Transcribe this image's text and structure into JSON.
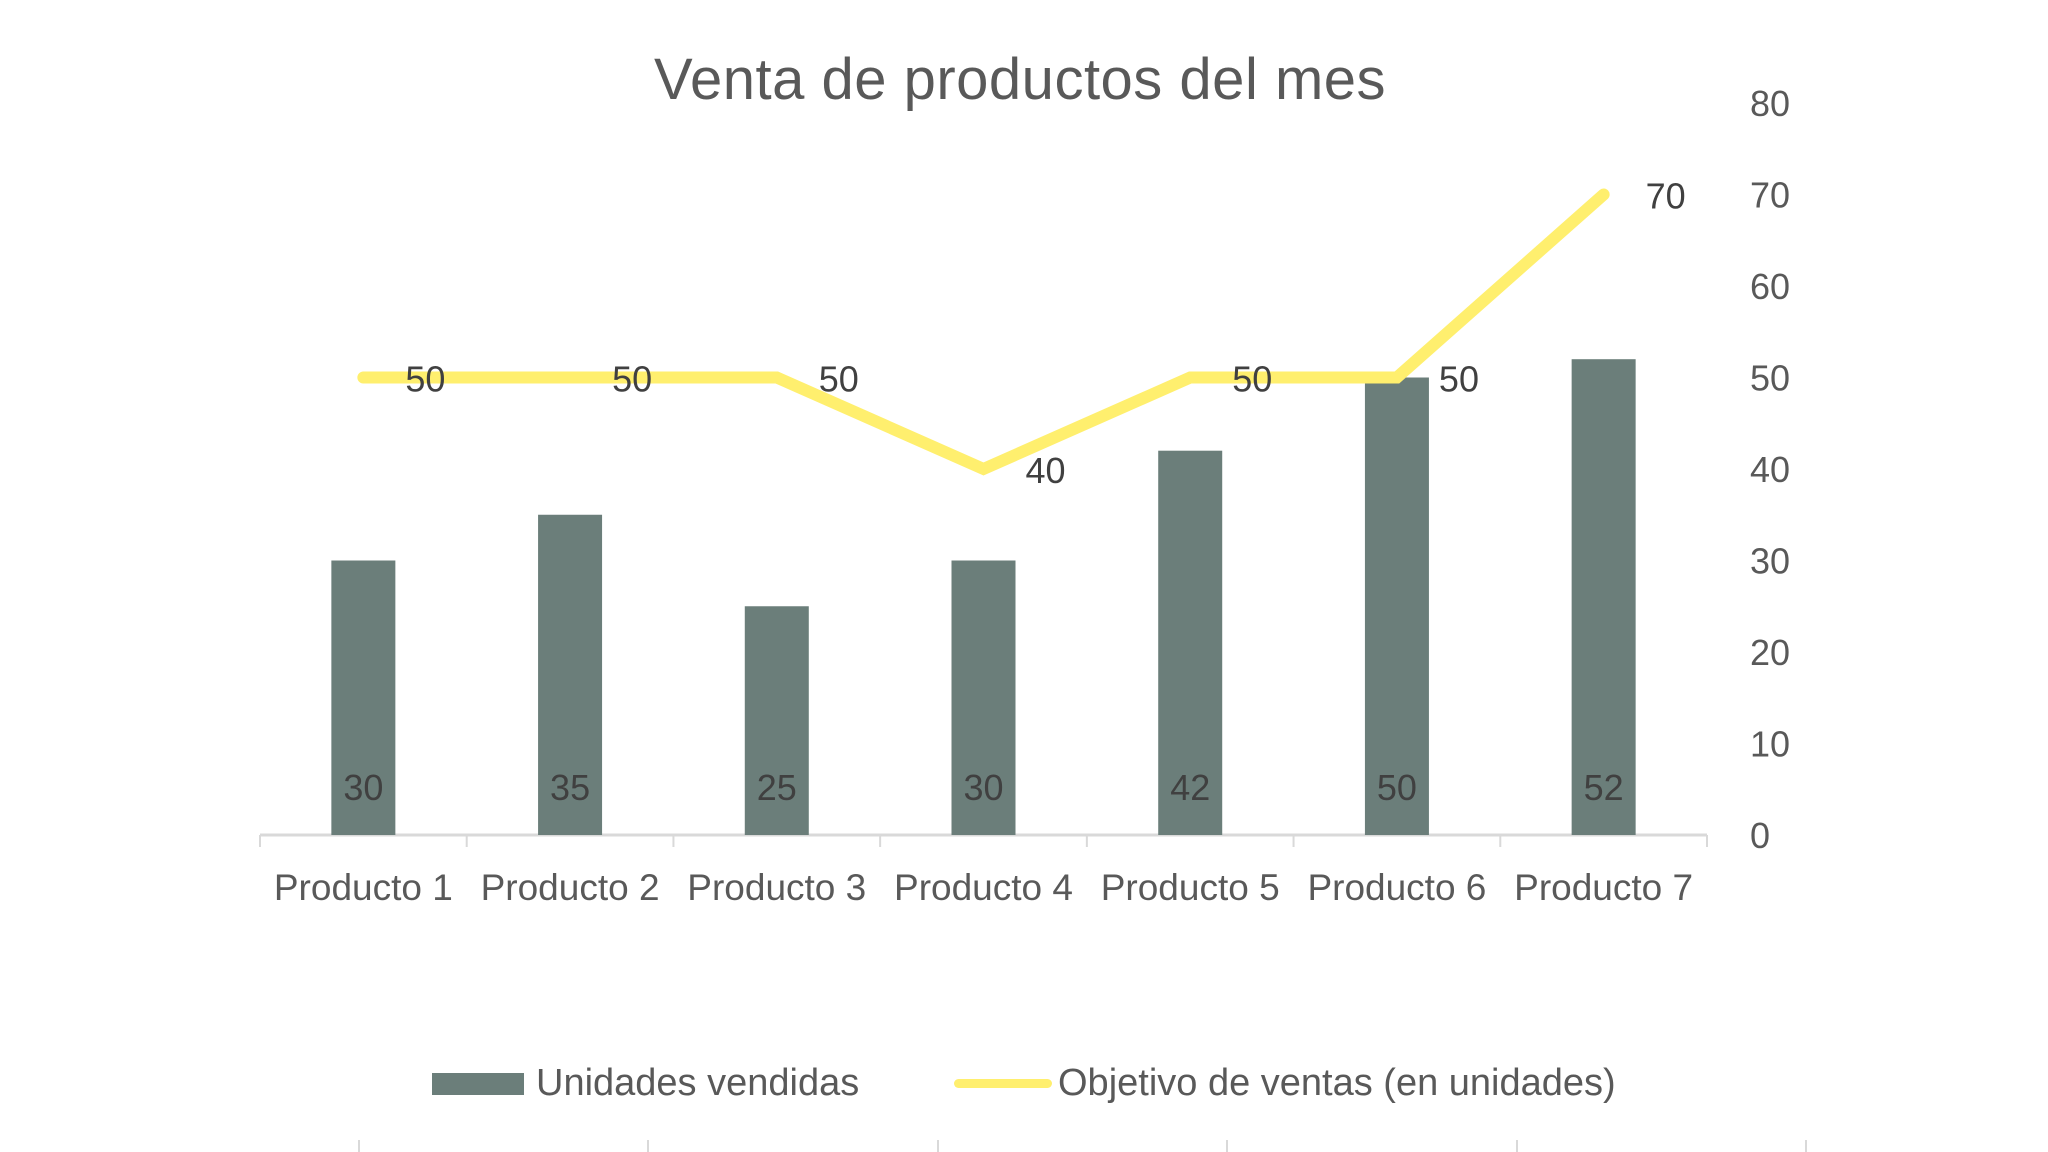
{
  "chart_data": {
    "type": "bar",
    "combo": "bar+line",
    "title": "Venta de productos del mes",
    "xlabel": "",
    "ylabel": "",
    "categories": [
      "Producto 1",
      "Producto 2",
      "Producto 3",
      "Producto 4",
      "Producto 5",
      "Producto 6",
      "Producto 7"
    ],
    "series": [
      {
        "name": "Unidades vendidas",
        "type": "bar",
        "color": "#6b7e7a",
        "values": [
          30,
          35,
          25,
          30,
          42,
          50,
          52
        ],
        "data_labels": [
          "30",
          "35",
          "25",
          "30",
          "42",
          "50",
          "52"
        ],
        "label_position": "inside-base"
      },
      {
        "name": "Objetivo de ventas (en unidades)",
        "type": "line",
        "color": "#ffef6e",
        "values": [
          50,
          50,
          50,
          40,
          50,
          50,
          70
        ],
        "data_labels": [
          "50",
          "50",
          "50",
          "40",
          "50",
          "50",
          "70"
        ],
        "label_position": "right"
      }
    ],
    "y_axis": {
      "position": "right",
      "ylim": [
        0,
        80
      ],
      "ticks": [
        0,
        10,
        20,
        30,
        40,
        50,
        60,
        70,
        80
      ],
      "tick_labels": [
        "0",
        "10",
        "20",
        "30",
        "40",
        "50",
        "60",
        "70",
        "80"
      ]
    },
    "grid": false,
    "legend_position": "bottom"
  },
  "legend": {
    "items": [
      {
        "label": "Unidades vendidas",
        "color": "#6b7e7a",
        "kind": "bar"
      },
      {
        "label": "Objetivo de ventas (en unidades)",
        "color": "#ffef6e",
        "kind": "line"
      }
    ]
  }
}
